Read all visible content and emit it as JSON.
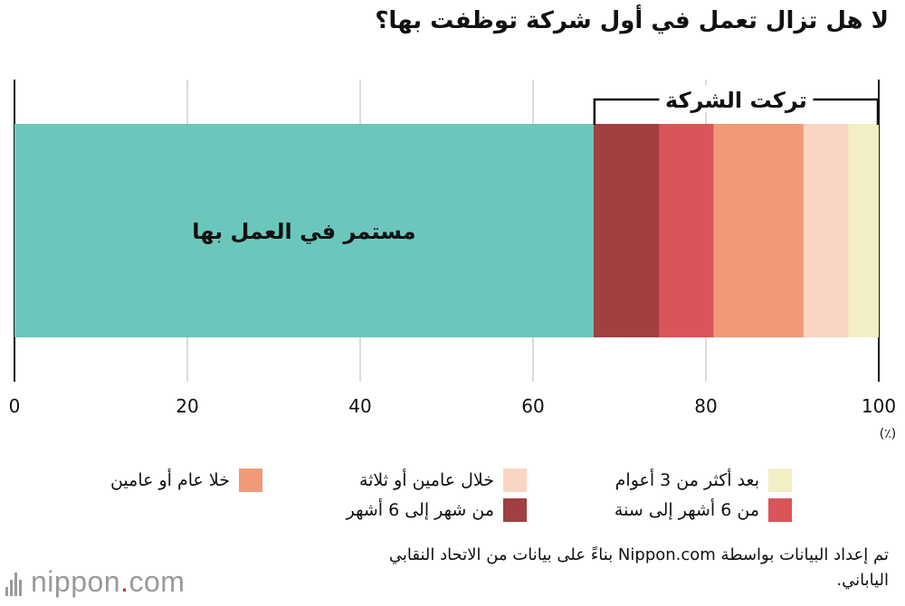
{
  "title": "لا هل تزال تعمل في أول شركة توظفت بها؟",
  "chart_data": {
    "type": "bar",
    "orientation": "horizontal-stacked",
    "xlim": [
      0,
      100
    ],
    "ticks": [
      "0",
      "20",
      "40",
      "60",
      "80",
      "100"
    ],
    "unit": "(٪)",
    "grid": true,
    "bracket_label": "تركت الشركة",
    "bar_label": "مستمر في العمل بها",
    "series": [
      {
        "name": "مستمر في العمل بها",
        "value": 67.0,
        "color": "#6bc7bc"
      },
      {
        "name": "من شهر إلى 6 أشهر",
        "value": 7.6,
        "color": "#a14040"
      },
      {
        "name": "من 6 أشهر إلى سنة",
        "value": 6.3,
        "color": "#d9555a"
      },
      {
        "name": "خلا عام أو عامين",
        "value": 10.4,
        "color": "#f29a78"
      },
      {
        "name": "خلال عامين أو ثلاثة",
        "value": 5.2,
        "color": "#f9d5c4"
      },
      {
        "name": "بعد أكثر من 3 أعوام",
        "value": 3.5,
        "color": "#f2efc4"
      }
    ]
  },
  "legend": [
    {
      "label": "بعد أكثر من 3 أعوام",
      "color": "#f2efc4"
    },
    {
      "label": "خلال عامين أو ثلاثة",
      "color": "#f9d5c4"
    },
    {
      "label": "خلا عام أو عامين",
      "color": "#f29a78"
    },
    {
      "label": "من 6 أشهر إلى سنة",
      "color": "#d9555a"
    },
    {
      "label": "من شهر إلى 6 أشهر",
      "color": "#a14040"
    }
  ],
  "source": "تم إعداد البيانات بواسطة Nippon.com بناءً على بيانات من الاتحاد النقابي الياباني.",
  "logo": {
    "name": "nippon",
    "dot": ".",
    "suffix": "com"
  }
}
